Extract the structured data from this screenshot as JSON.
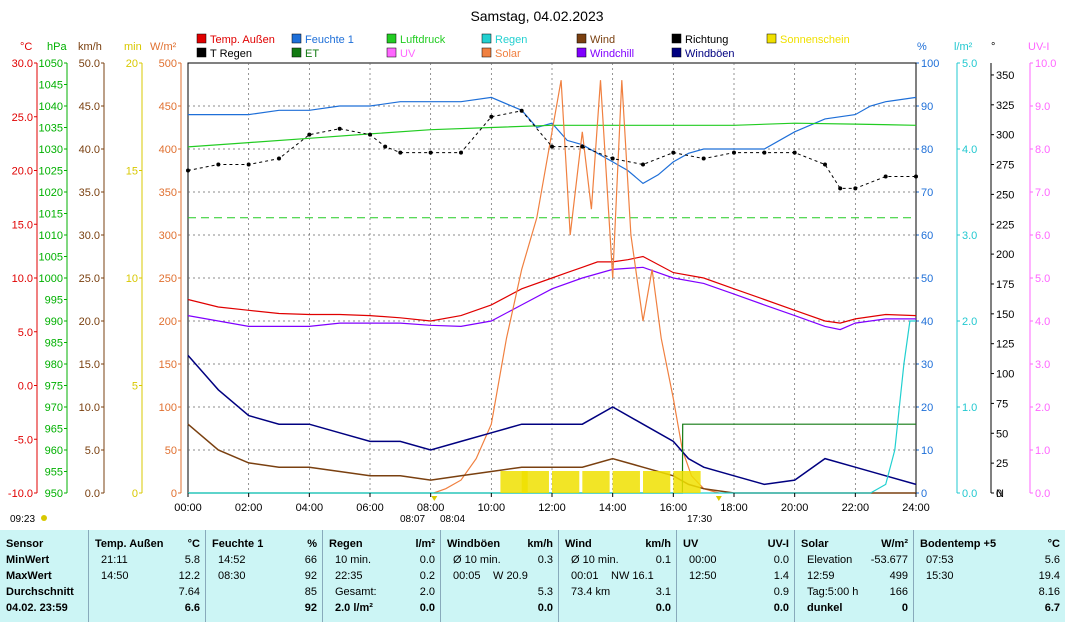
{
  "title": "Samstag, 04.02.2023",
  "legend": [
    {
      "label": "Temp. Außen",
      "color": "#e00000"
    },
    {
      "label": "Feuchte 1",
      "color": "#1e6fd8"
    },
    {
      "label": "Luftdruck",
      "color": "#22cc22"
    },
    {
      "label": "Regen",
      "color": "#22d0d0"
    },
    {
      "label": "Wind",
      "color": "#7a4010"
    },
    {
      "label": "Richtung",
      "color": "#000000"
    },
    {
      "label": "Sonnenschein",
      "color": "#f0e000"
    },
    {
      "label": "T Regen",
      "color": "#000000"
    },
    {
      "label": "ET",
      "color": "#137a13"
    },
    {
      "label": "UV",
      "color": "#ff66ff"
    },
    {
      "label": "Solar",
      "color": "#f08040"
    },
    {
      "label": "Windchill",
      "color": "#8000ff"
    },
    {
      "label": "Windböen",
      "color": "#000080"
    }
  ],
  "axes_left": [
    {
      "unit": "°C",
      "color": "#e00000",
      "ticks": [
        "30.0",
        "25.0",
        "20.0",
        "15.0",
        "10.0",
        "5.0",
        "0.0",
        "-5.0",
        "-10.0"
      ]
    },
    {
      "unit": "hPa",
      "color": "#00b000",
      "ticks": [
        "1050",
        "1045",
        "1040",
        "1035",
        "1030",
        "1025",
        "1020",
        "1015",
        "1010",
        "1005",
        "1000",
        "995",
        "990",
        "985",
        "980",
        "975",
        "970",
        "965",
        "960",
        "955",
        "950"
      ]
    },
    {
      "unit": "km/h",
      "color": "#7a4010",
      "ticks": [
        "50.0",
        "45.0",
        "40.0",
        "35.0",
        "30.0",
        "25.0",
        "20.0",
        "15.0",
        "10.0",
        "5.0",
        "0.0"
      ]
    },
    {
      "unit": "min",
      "color": "#d8c800",
      "ticks": [
        "20",
        "15",
        "10",
        "5",
        "0"
      ]
    },
    {
      "unit": "W/m²",
      "color": "#e07030",
      "ticks": [
        "500",
        "450",
        "400",
        "350",
        "300",
        "250",
        "200",
        "150",
        "100",
        "50",
        "0"
      ]
    }
  ],
  "axes_right": [
    {
      "unit": "%",
      "color": "#1e6fd8",
      "ticks": [
        "100",
        "90",
        "80",
        "70",
        "60",
        "50",
        "40",
        "30",
        "20",
        "10",
        "0"
      ]
    },
    {
      "unit": "l/m²",
      "color": "#22c8d0",
      "ticks": [
        "5.0",
        "4.0",
        "3.0",
        "2.0",
        "1.0",
        "0.0"
      ]
    },
    {
      "unit": "°",
      "color": "#000000",
      "ticks": [
        "350",
        "325",
        "300",
        "275",
        "250",
        "225",
        "200",
        "175",
        "150",
        "125",
        "100",
        "75",
        "50",
        "25",
        "0"
      ],
      "bottom_label": "N"
    },
    {
      "unit": "UV-I",
      "color": "#ff66ff",
      "ticks": [
        "10.0",
        "9.0",
        "8.0",
        "7.0",
        "6.0",
        "5.0",
        "4.0",
        "3.0",
        "2.0",
        "1.0",
        "0.0"
      ]
    }
  ],
  "x_ticks": [
    "00:00",
    "02:00",
    "04:00",
    "06:00",
    "08:00",
    "10:00",
    "12:00",
    "14:00",
    "16:00",
    "18:00",
    "20:00",
    "22:00",
    "24:00"
  ],
  "sun_markers": {
    "sunrise": "08:07",
    "sunset": "17:30",
    "window": "08:04",
    "left_time": "09:23"
  },
  "chart_data": {
    "type": "line",
    "x_unit": "hours",
    "x_range": [
      0,
      24
    ],
    "series": [
      {
        "name": "Temp. Außen",
        "unit": "°C",
        "x": [
          0,
          1,
          2,
          3,
          4,
          5,
          6,
          7,
          8,
          9,
          10,
          11,
          12,
          12.5,
          13,
          13.5,
          14,
          14.5,
          15,
          16,
          17,
          18,
          19,
          20,
          21,
          21.5,
          22,
          23,
          24
        ],
        "values": [
          8.0,
          7.3,
          7.0,
          6.7,
          6.6,
          6.6,
          6.5,
          6.3,
          6.0,
          6.5,
          7.5,
          9.0,
          10.0,
          10.5,
          11.0,
          11.5,
          11.5,
          11.7,
          12.0,
          10.5,
          10.0,
          9.0,
          8.0,
          7.0,
          6.0,
          5.8,
          6.2,
          6.6,
          6.5
        ]
      },
      {
        "name": "Feuchte 1",
        "unit": "%",
        "x": [
          0,
          1,
          2,
          3,
          4,
          5,
          6,
          7,
          8,
          9,
          10,
          11,
          11.5,
          12,
          12.5,
          13,
          13.5,
          14,
          14.5,
          15,
          15.5,
          16,
          16.5,
          17,
          18,
          19,
          20,
          21,
          22,
          22.5,
          23,
          24
        ],
        "values": [
          88,
          88,
          88,
          89,
          89,
          90,
          90,
          91,
          91,
          91,
          92,
          89,
          85,
          86,
          82,
          81,
          79,
          77,
          75,
          72,
          74,
          77,
          79,
          80,
          80,
          80,
          84,
          87,
          88,
          90,
          91,
          92
        ]
      },
      {
        "name": "Luftdruck",
        "unit": "hPa",
        "x": [
          0,
          2,
          4,
          6,
          8,
          10,
          12,
          14,
          16,
          18,
          20,
          22,
          24
        ],
        "values": [
          1030.5,
          1031.5,
          1032.5,
          1033.5,
          1034.5,
          1035,
          1035.5,
          1035.5,
          1035.5,
          1035.5,
          1036,
          1035.8,
          1035.5
        ]
      },
      {
        "name": "Windchill",
        "unit": "°C",
        "x": [
          0,
          1,
          2,
          3,
          4,
          5,
          6,
          7,
          8,
          9,
          10,
          11,
          12,
          13,
          14,
          15,
          16,
          17,
          18,
          19,
          20,
          21,
          21.5,
          22,
          23,
          24
        ],
        "values": [
          6.5,
          6.0,
          5.5,
          5.5,
          5.5,
          5.8,
          5.8,
          5.8,
          5.6,
          5.5,
          6.0,
          7.5,
          9.0,
          10.0,
          10.8,
          11.0,
          10.0,
          9.5,
          8.5,
          7.5,
          6.5,
          5.5,
          5.2,
          5.8,
          6.2,
          6.2
        ]
      },
      {
        "name": "Solar",
        "unit": "W/m²",
        "x": [
          8.1,
          8.5,
          9,
          9.5,
          10,
          10.5,
          11,
          11.5,
          12,
          12.3,
          12.6,
          13,
          13.3,
          13.6,
          14,
          14.3,
          14.6,
          15,
          15.3,
          15.6,
          16,
          16.3,
          16.6,
          17,
          17.5
        ],
        "values": [
          0,
          5,
          15,
          40,
          80,
          180,
          260,
          320,
          420,
          480,
          300,
          420,
          330,
          480,
          250,
          480,
          300,
          200,
          260,
          180,
          110,
          50,
          20,
          5,
          0
        ]
      },
      {
        "name": "Wind",
        "unit": "km/h",
        "x": [
          0,
          1,
          2,
          3,
          4,
          5,
          6,
          7,
          8,
          9,
          10,
          11,
          12,
          13,
          14,
          15,
          16,
          16.5,
          17,
          18,
          19,
          20,
          21,
          22,
          23,
          24
        ],
        "values": [
          8,
          5,
          3.5,
          3,
          3,
          2.5,
          2,
          2,
          1.5,
          2,
          2.5,
          3,
          3,
          3,
          4,
          3,
          2,
          1,
          0.5,
          0,
          0,
          0,
          0,
          0,
          0,
          0
        ]
      },
      {
        "name": "Windböen",
        "unit": "km/h",
        "x": [
          0,
          1,
          2,
          3,
          4,
          5,
          6,
          7,
          8,
          9,
          10,
          11,
          12,
          13,
          14,
          15,
          16,
          16.5,
          17,
          18,
          19,
          20,
          21,
          22,
          23,
          24
        ],
        "values": [
          16,
          12,
          9,
          8,
          8,
          7,
          6,
          6,
          5,
          6,
          7,
          8,
          8,
          8,
          10,
          8,
          6,
          4,
          3,
          2,
          1,
          1.5,
          4,
          3,
          2,
          1
        ]
      },
      {
        "name": "Richtung",
        "unit": "°",
        "x": [
          0,
          1,
          2,
          3,
          4,
          5,
          6,
          6.5,
          7,
          8,
          9,
          10,
          11,
          12,
          13,
          14,
          15,
          16,
          17,
          18,
          19,
          20,
          21,
          21.5,
          22,
          23,
          24
        ],
        "values": [
          270,
          275,
          275,
          280,
          300,
          305,
          300,
          290,
          285,
          285,
          285,
          315,
          320,
          290,
          290,
          280,
          275,
          285,
          280,
          285,
          285,
          285,
          275,
          255,
          255,
          265,
          265
        ]
      },
      {
        "name": "ET",
        "unit": "l/m²",
        "x": [
          0,
          16.3,
          16.31,
          24
        ],
        "values": [
          0,
          0,
          0.8,
          0.8
        ]
      },
      {
        "name": "Regen",
        "unit": "l/m²",
        "x": [
          0,
          22.5,
          23,
          23.3,
          23.6,
          23.8,
          24
        ],
        "values": [
          0,
          0,
          0.1,
          0.5,
          1.5,
          2.0,
          2.0
        ]
      },
      {
        "name": "Sonnenschein",
        "unit": "min",
        "x": [
          10.3,
          11,
          12,
          13,
          14,
          15,
          16
        ],
        "values": [
          1,
          1,
          1,
          1,
          1,
          1,
          1
        ]
      }
    ]
  },
  "table": {
    "labels": {
      "sensor": "Sensor",
      "min": "MinWert",
      "max": "MaxWert",
      "avg": "Durchschnitt",
      "date": "04.02. 23:59"
    },
    "groups": [
      {
        "title": "Temp. Außen",
        "unit": "°C",
        "rows": [
          [
            "21:11",
            "",
            "5.8"
          ],
          [
            "14:50",
            "",
            "12.2"
          ],
          [
            "",
            "",
            "7.64"
          ],
          [
            "",
            "",
            "6.6"
          ]
        ]
      },
      {
        "title": "Feuchte 1",
        "unit": "%",
        "rows": [
          [
            "14:52",
            "",
            "66"
          ],
          [
            "08:30",
            "",
            "92"
          ],
          [
            "",
            "",
            "85"
          ],
          [
            "",
            "",
            "92"
          ]
        ]
      },
      {
        "title": "Regen",
        "unit": "l/m²",
        "rows": [
          [
            "10 min.",
            "",
            "0.0"
          ],
          [
            "22:35",
            "",
            "0.2"
          ],
          [
            "Gesamt:",
            "",
            "2.0"
          ],
          [
            "2.0 l/m²",
            "",
            "0.0"
          ]
        ]
      },
      {
        "title": "Windböen",
        "unit": "km/h",
        "rows": [
          [
            "Ø 10 min.",
            "",
            "0.3"
          ],
          [
            "00:05",
            "W 20.9",
            ""
          ],
          [
            "",
            "",
            "5.3"
          ],
          [
            "",
            "",
            "0.0"
          ]
        ]
      },
      {
        "title": "Wind",
        "unit": "km/h",
        "rows": [
          [
            "Ø 10 min.",
            "",
            "0.1"
          ],
          [
            "00:01",
            "NW 16.1",
            ""
          ],
          [
            "73.4 km",
            "",
            "3.1"
          ],
          [
            "",
            "",
            "0.0"
          ]
        ]
      },
      {
        "title": "UV",
        "unit": "UV-I",
        "rows": [
          [
            "00:00",
            "",
            "0.0"
          ],
          [
            "12:50",
            "",
            "1.4"
          ],
          [
            "",
            "",
            "0.9"
          ],
          [
            "",
            "",
            "0.0"
          ]
        ]
      },
      {
        "title": "Solar",
        "unit": "W/m²",
        "rows": [
          [
            "Elevation",
            "",
            "-53.677"
          ],
          [
            "12:59",
            "",
            "499"
          ],
          [
            "Tag:5:00 h",
            "",
            "166"
          ],
          [
            "dunkel",
            "",
            "0"
          ]
        ]
      },
      {
        "title": "Bodentemp +5",
        "unit": "°C",
        "rows": [
          [
            "07:53",
            "",
            "5.6"
          ],
          [
            "15:30",
            "",
            "19.4"
          ],
          [
            "",
            "",
            "8.16"
          ],
          [
            "",
            "",
            "6.7"
          ]
        ]
      }
    ]
  }
}
